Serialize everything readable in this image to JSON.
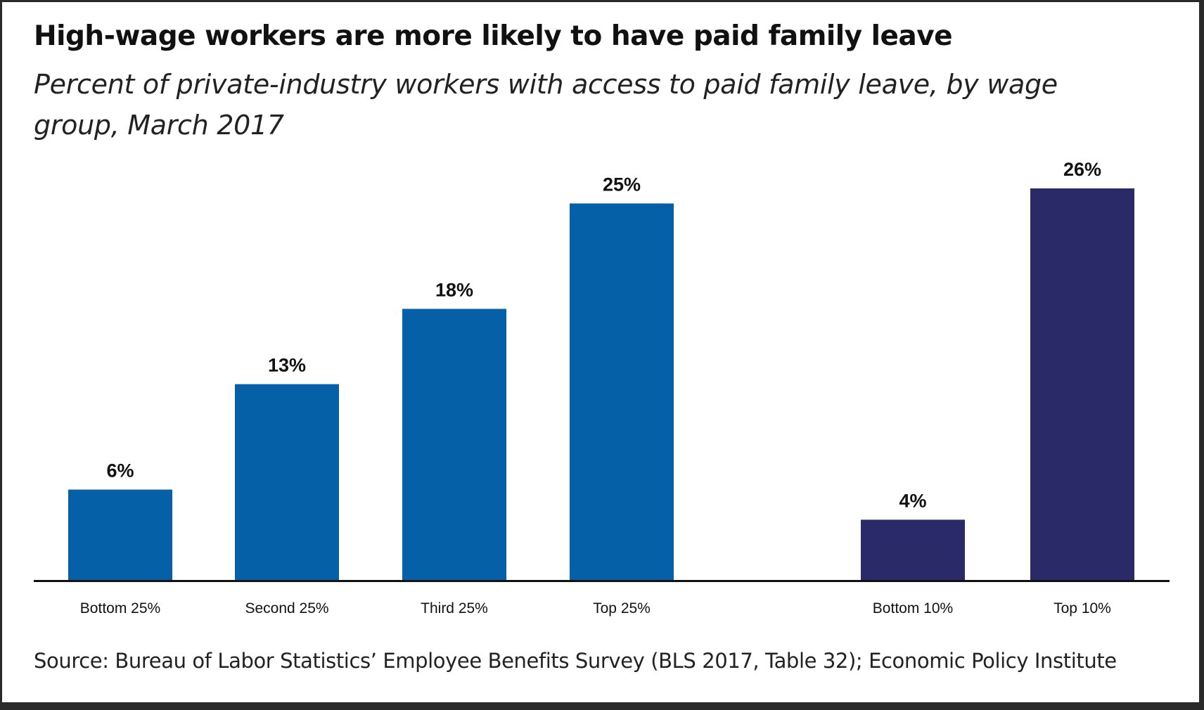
{
  "chart_data": {
    "type": "bar",
    "title": "High-wage workers are more likely to have paid family leave",
    "subtitle": "Percent of private-industry workers with access to paid family leave, by wage group, March 2017",
    "categories": [
      "Bottom 25%",
      "Second 25%",
      "Third 25%",
      "Top 25%",
      "Bottom 10%",
      "Top 10%"
    ],
    "values": [
      6,
      13,
      18,
      25,
      4,
      26
    ],
    "value_labels": [
      "6%",
      "13%",
      "18%",
      "25%",
      "4%",
      "26%"
    ],
    "groups": [
      {
        "categories": [
          "Bottom 25%",
          "Second 25%",
          "Third 25%",
          "Top 25%"
        ],
        "color": "#0560a8"
      },
      {
        "categories": [
          "Bottom 10%",
          "Top 10%"
        ],
        "color": "#2a2a68"
      }
    ],
    "ylim": [
      0,
      26
    ],
    "grid": false,
    "legend": "none",
    "source": "Source: Bureau of Labor Statistics’ Employee Benefits Survey (BLS 2017, Table 32); Economic Policy Institute"
  }
}
